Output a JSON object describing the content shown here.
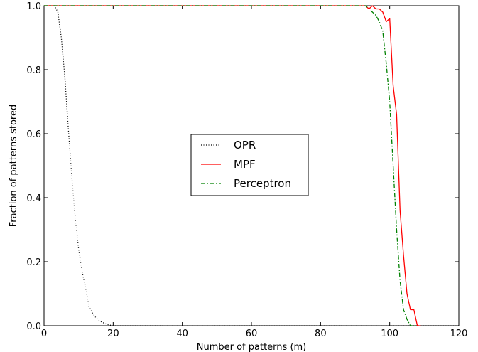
{
  "chart_data": {
    "type": "line",
    "title": "",
    "xlabel": "Number of patterns (m)",
    "ylabel": "Fraction of patterns stored",
    "xlim": [
      0,
      120
    ],
    "ylim": [
      0,
      1.0
    ],
    "xticks": [
      0,
      20,
      40,
      60,
      80,
      100,
      120
    ],
    "yticks": [
      0.0,
      0.2,
      0.4,
      0.6,
      0.8,
      1.0
    ],
    "xtick_labels": [
      "0",
      "20",
      "40",
      "60",
      "80",
      "100",
      "120"
    ],
    "ytick_labels": [
      "0.0",
      "0.2",
      "0.4",
      "0.6",
      "0.8",
      "1.0"
    ],
    "grid": false,
    "legend_position": "center",
    "series": [
      {
        "name": "OPR",
        "color": "#000000",
        "style": "dotted",
        "x": [
          0,
          3,
          4,
          5,
          6,
          7,
          8,
          9,
          10,
          11,
          12,
          13,
          14,
          15,
          16,
          17,
          18,
          19,
          20,
          25,
          40,
          60,
          80,
          100,
          120
        ],
        "y": [
          1.0,
          1.0,
          0.98,
          0.9,
          0.78,
          0.62,
          0.47,
          0.34,
          0.24,
          0.17,
          0.12,
          0.06,
          0.04,
          0.025,
          0.015,
          0.01,
          0.005,
          0.002,
          0.0,
          0.0,
          0.0,
          0.0,
          0.0,
          0.0,
          0.0
        ]
      },
      {
        "name": "MPF",
        "color": "#ff0000",
        "style": "solid",
        "x": [
          0,
          93,
          94,
          95,
          96,
          97,
          98,
          99,
          100,
          101,
          102,
          103,
          104,
          105,
          106,
          107,
          108,
          109
        ],
        "y": [
          1.0,
          1.0,
          0.99,
          1.0,
          0.99,
          0.99,
          0.98,
          0.95,
          0.96,
          0.75,
          0.66,
          0.36,
          0.22,
          0.1,
          0.05,
          0.05,
          0.0,
          0.0
        ]
      },
      {
        "name": "Perceptron",
        "color": "#008000",
        "style": "dashdot",
        "x": [
          0,
          93,
          94,
          95,
          96,
          97,
          98,
          99,
          100,
          101,
          102,
          103,
          104,
          105,
          106,
          107,
          108
        ],
        "y": [
          1.0,
          1.0,
          0.99,
          0.98,
          0.97,
          0.95,
          0.92,
          0.82,
          0.7,
          0.5,
          0.3,
          0.14,
          0.05,
          0.02,
          0.0,
          0.0,
          0.0
        ]
      }
    ]
  }
}
